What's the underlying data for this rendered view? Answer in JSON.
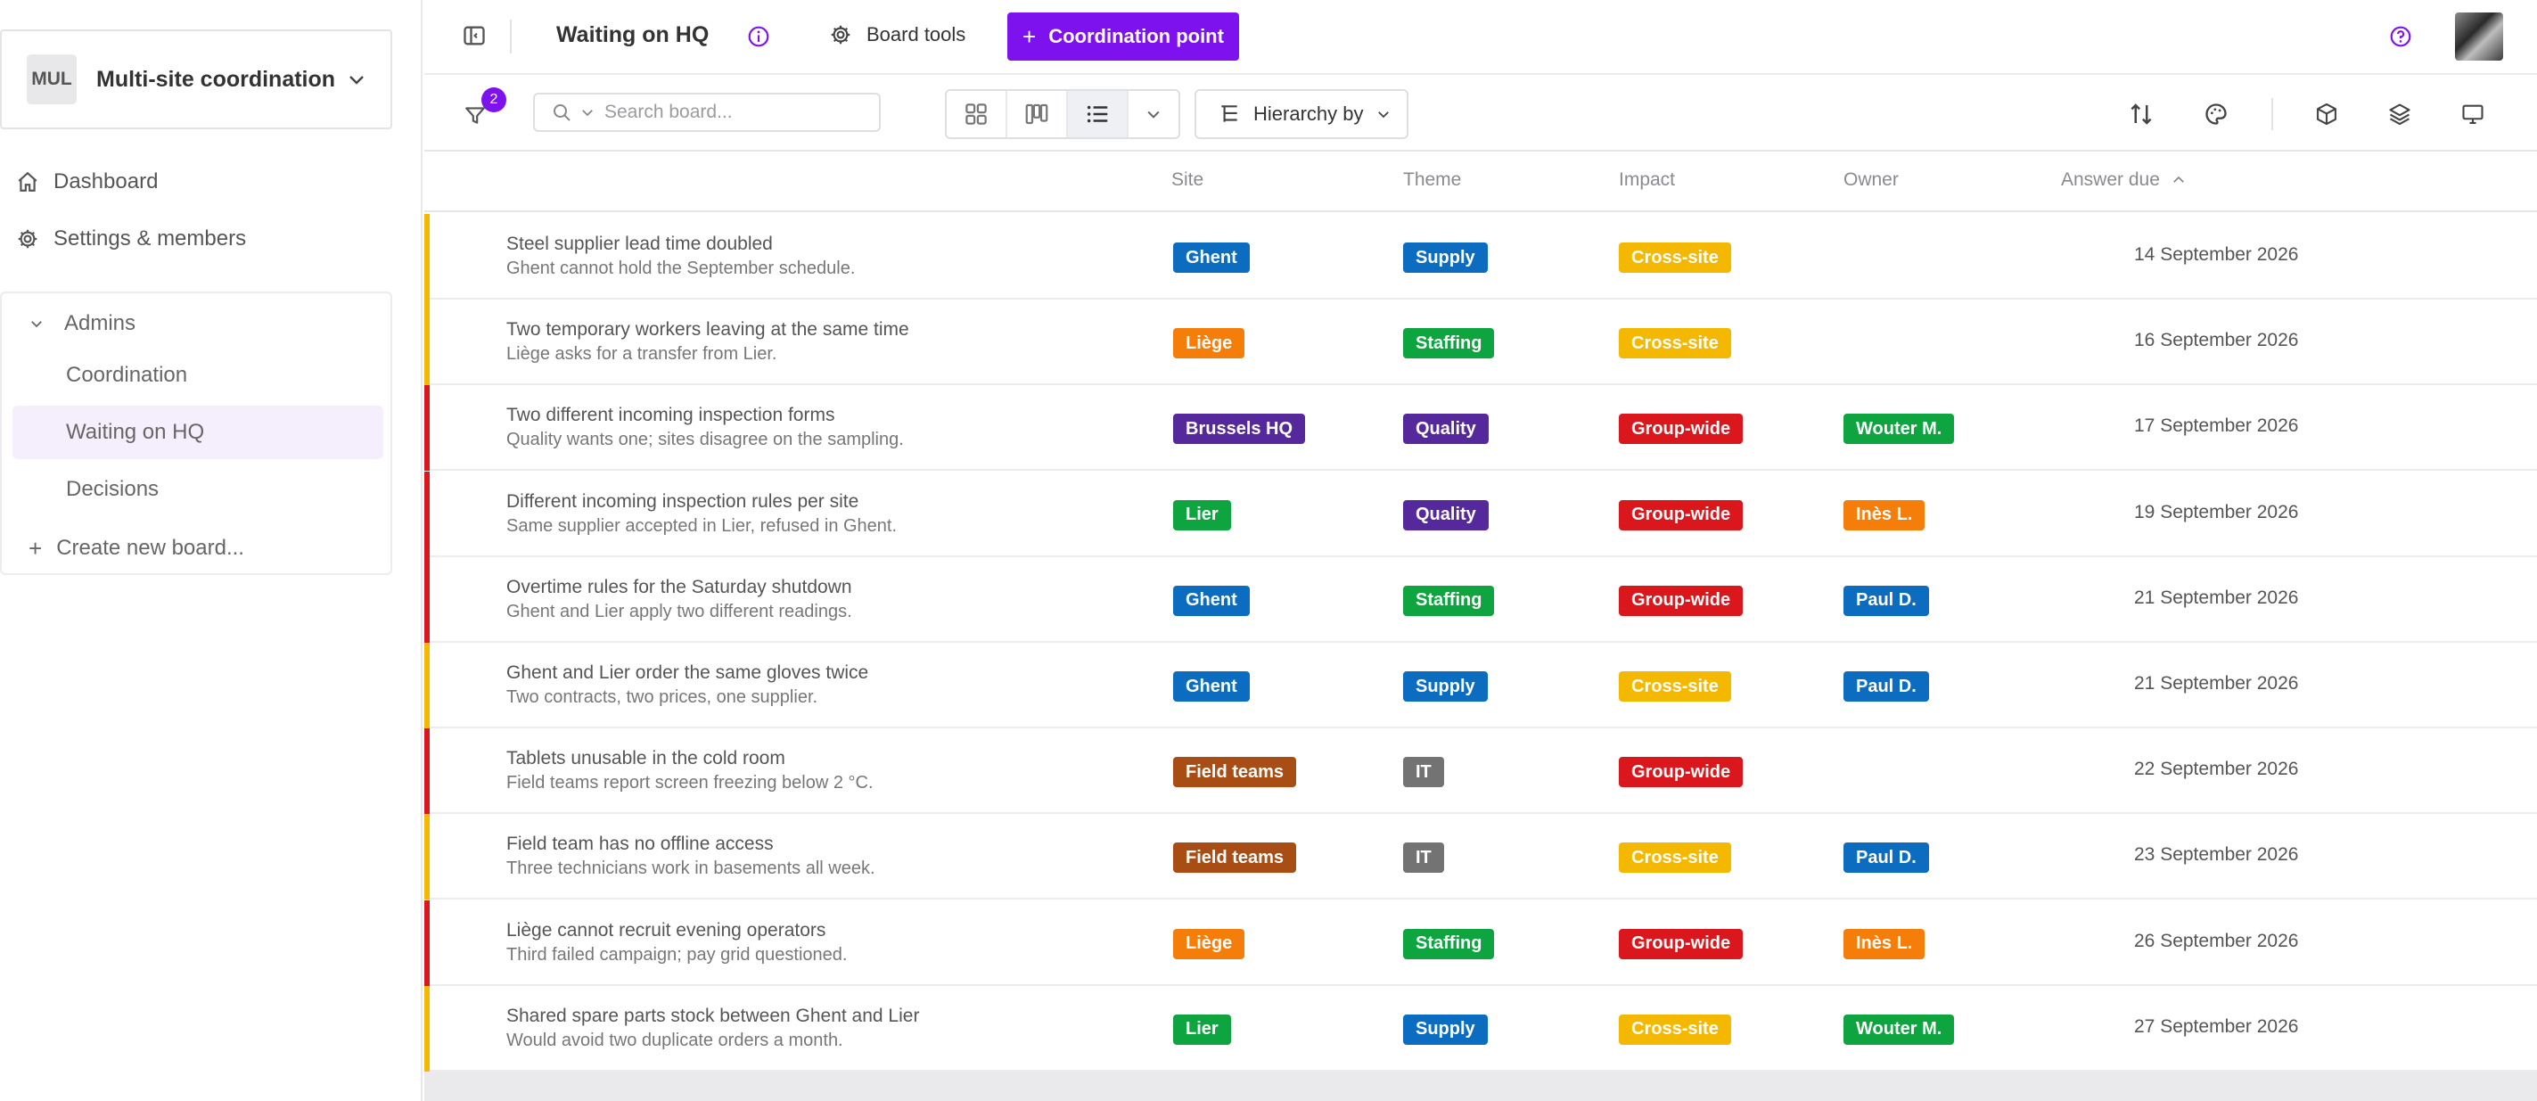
{
  "sidebar": {
    "workspace": {
      "avatar_text": "MUL",
      "name": "Multi-site coordination"
    },
    "nav": [
      {
        "label": "Dashboard",
        "icon": "home-icon"
      },
      {
        "label": "Settings & members",
        "icon": "gear-icon"
      }
    ],
    "group": {
      "label": "Admins",
      "boards": [
        {
          "label": "Coordination",
          "active": false
        },
        {
          "label": "Waiting on HQ",
          "active": true
        },
        {
          "label": "Decisions",
          "active": false
        }
      ],
      "create_label": "Create new board..."
    }
  },
  "topbar": {
    "board_title": "Waiting on HQ",
    "board_tools_label": "Board tools",
    "primary_button_label": "Coordination point",
    "accent_color": "#7d12ee"
  },
  "toolbar": {
    "filter_count": "2",
    "search_placeholder": "Search board...",
    "hierarchy_label": "Hierarchy by"
  },
  "table": {
    "columns": {
      "site": "Site",
      "theme": "Theme",
      "impact": "Impact",
      "owner": "Owner",
      "answer_due": "Answer due"
    },
    "sort": {
      "column": "answer_due",
      "direction": "ascending"
    },
    "rows": [
      {
        "title": "Steel supplier lead time doubled",
        "subtitle": "Ghent cannot hold the September schedule.",
        "priority_color": "#f5b800",
        "site": "Ghent",
        "theme": "Supply",
        "impact": "Cross-site",
        "owner": "",
        "due": "14 September 2026"
      },
      {
        "title": "Two temporary workers leaving at the same time",
        "subtitle": "Liège asks for a transfer from Lier.",
        "priority_color": "#f5b800",
        "site": "Liège",
        "theme": "Staffing",
        "impact": "Cross-site",
        "owner": "",
        "due": "16 September 2026"
      },
      {
        "title": "Two different incoming inspection forms",
        "subtitle": "Quality wants one; sites disagree on the sampling.",
        "priority_color": "#d9171d",
        "site": "Brussels HQ",
        "theme": "Quality",
        "impact": "Group-wide",
        "owner": "Wouter M.",
        "due": "17 September 2026"
      },
      {
        "title": "Different incoming inspection rules per site",
        "subtitle": "Same supplier accepted in Lier, refused in Ghent.",
        "priority_color": "#d9171d",
        "site": "Lier",
        "theme": "Quality",
        "impact": "Group-wide",
        "owner": "Inès L.",
        "due": "19 September 2026"
      },
      {
        "title": "Overtime rules for the Saturday shutdown",
        "subtitle": "Ghent and Lier apply two different readings.",
        "priority_color": "#d9171d",
        "site": "Ghent",
        "theme": "Staffing",
        "impact": "Group-wide",
        "owner": "Paul D.",
        "due": "21 September 2026"
      },
      {
        "title": "Ghent and Lier order the same gloves twice",
        "subtitle": "Two contracts, two prices, one supplier.",
        "priority_color": "#f5b800",
        "site": "Ghent",
        "theme": "Supply",
        "impact": "Cross-site",
        "owner": "Paul D.",
        "due": "21 September 2026"
      },
      {
        "title": "Tablets unusable in the cold room",
        "subtitle": "Field teams report screen freezing below 2 °C.",
        "priority_color": "#d9171d",
        "site": "Field teams",
        "theme": "IT",
        "impact": "Group-wide",
        "owner": "",
        "due": "22 September 2026"
      },
      {
        "title": "Field team has no offline access",
        "subtitle": "Three technicians work in basements all week.",
        "priority_color": "#f5b800",
        "site": "Field teams",
        "theme": "IT",
        "impact": "Cross-site",
        "owner": "Paul D.",
        "due": "23 September 2026"
      },
      {
        "title": "Liège cannot recruit evening operators",
        "subtitle": "Third failed campaign; pay grid questioned.",
        "priority_color": "#d9171d",
        "site": "Liège",
        "theme": "Staffing",
        "impact": "Group-wide",
        "owner": "Inès L.",
        "due": "26 September 2026"
      },
      {
        "title": "Shared spare parts stock between Ghent and Lier",
        "subtitle": "Would avoid two duplicate orders a month.",
        "priority_color": "#f5b800",
        "site": "Lier",
        "theme": "Supply",
        "impact": "Cross-site",
        "owner": "Wouter M.",
        "due": "27 September 2026"
      }
    ]
  },
  "tag_colors": {
    "site": {
      "Ghent": "#0b6cc0",
      "Liège": "#f57d0a",
      "Brussels HQ": "#55289b",
      "Lier": "#0ea43f",
      "Field teams": "#a84d14"
    },
    "theme": {
      "Supply": "#0b6cc0",
      "Staffing": "#0ea43f",
      "Quality": "#55289b",
      "IT": "#737373"
    },
    "impact": {
      "Cross-site": "#f5b800",
      "Group-wide": "#d9171d"
    },
    "owner": {
      "Wouter M.": "#0ea43f",
      "Inès L.": "#f57d0a",
      "Paul D.": "#0b6cc0"
    }
  }
}
